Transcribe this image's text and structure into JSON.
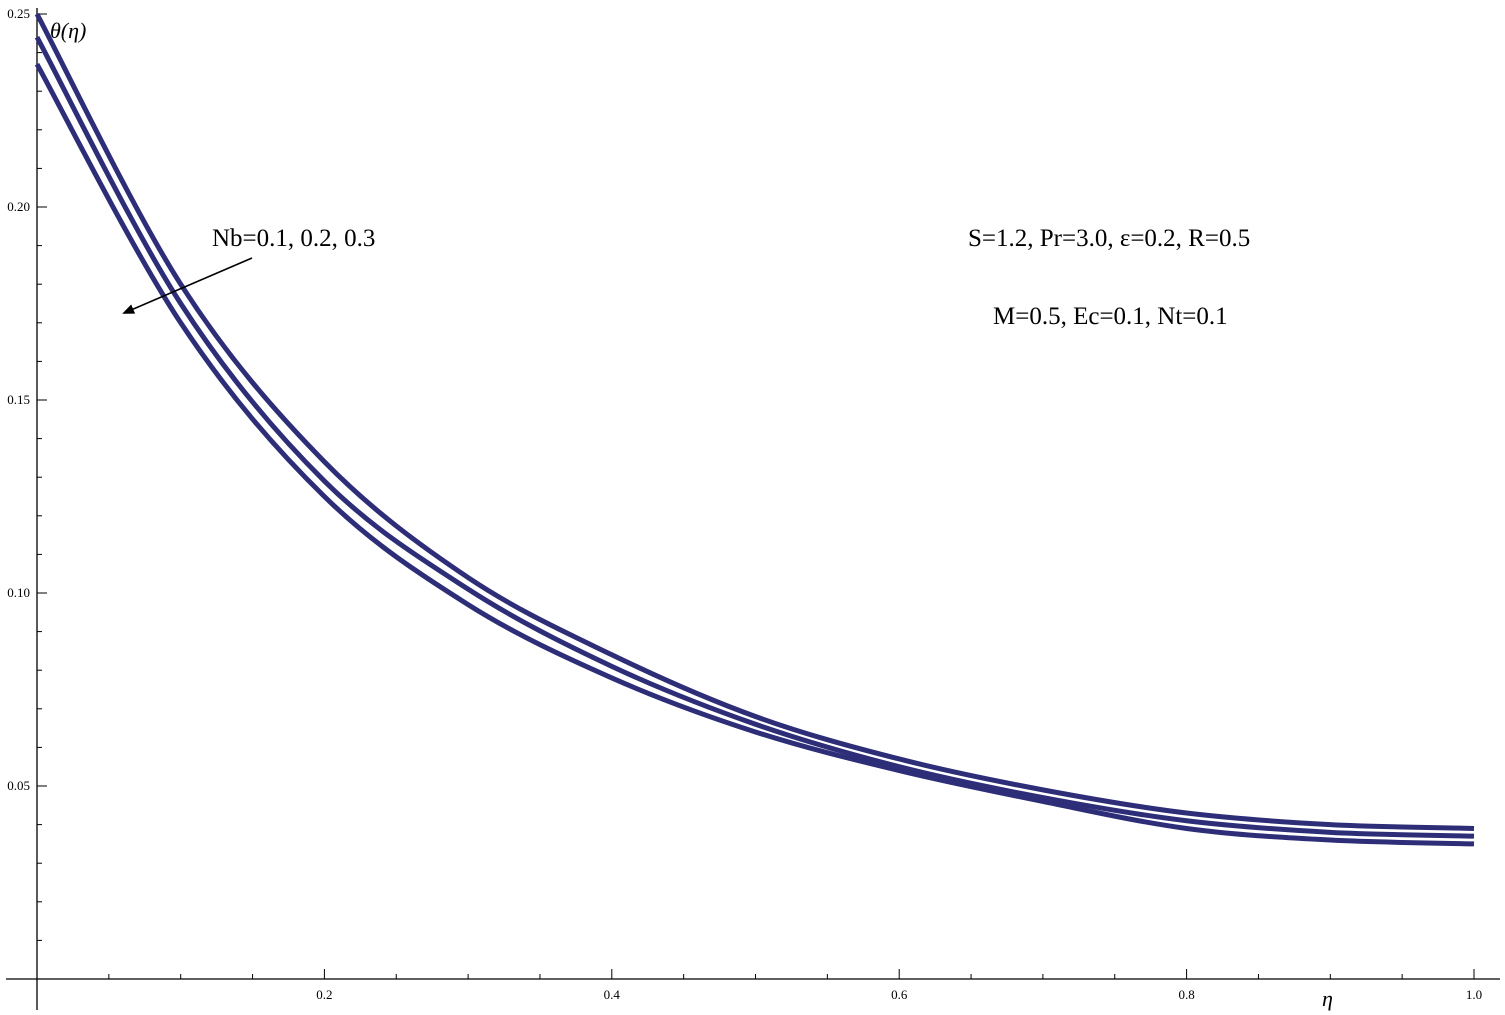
{
  "chart_data": {
    "type": "line",
    "title": "",
    "xlabel": "η",
    "ylabel": "θ(η)",
    "xlim": [
      0,
      1.0
    ],
    "ylim": [
      0.0,
      0.25
    ],
    "grid": false,
    "x_ticks": [
      0.2,
      0.4,
      0.6,
      0.8,
      1.0
    ],
    "x_tick_labels": [
      "0.2",
      "0.4",
      "0.6",
      "0.8",
      "1.0"
    ],
    "y_ticks": [
      0.05,
      0.1,
      0.15,
      0.2,
      0.25
    ],
    "y_tick_labels": [
      "0.05",
      "0.10",
      "0.15",
      "0.20",
      "0.25"
    ],
    "line_color": "#2e2e78",
    "x": [
      0,
      0.1,
      0.2,
      0.3,
      0.4,
      0.5,
      0.6,
      0.7,
      0.8,
      0.9,
      1.0
    ],
    "series": [
      {
        "values": [
          0.25,
          0.18,
          0.134,
          0.104,
          0.084,
          0.068,
          0.057,
          0.049,
          0.043,
          0.04,
          0.039
        ]
      },
      {
        "values": [
          0.244,
          0.175,
          0.129,
          0.101,
          0.081,
          0.066,
          0.055,
          0.047,
          0.041,
          0.038,
          0.037
        ]
      },
      {
        "values": [
          0.237,
          0.17,
          0.125,
          0.097,
          0.078,
          0.064,
          0.054,
          0.046,
          0.039,
          0.036,
          0.035
        ]
      }
    ],
    "annotations": {
      "arrow_label": "Nb=0.1, 0.2, 0.3",
      "params_line1": "S=1.2, Pr=3.0, ε=0.2, R=0.5",
      "params_line2": "M=0.5, Ec=0.1, Nt=0.1"
    }
  }
}
